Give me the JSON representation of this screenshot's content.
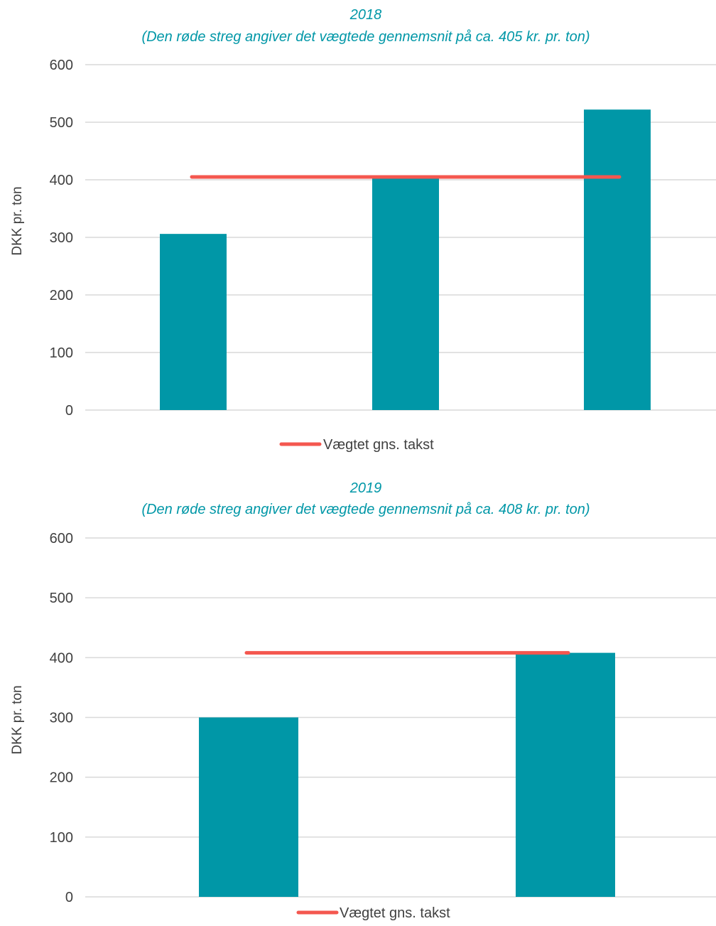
{
  "colors": {
    "bar": "#0097A7",
    "average_line": "#F4574F",
    "title": "#0097A7",
    "grid": "#D9D9D9",
    "text": "#404040"
  },
  "chart_data": [
    {
      "type": "bar",
      "title": "2018",
      "subtitle": "(Den røde streg angiver det vægtede gennemsnit på ca. 405 kr. pr. ton)",
      "xlabel": "",
      "ylabel": "DKK pr. ton",
      "ylim": [
        0,
        600
      ],
      "yticks": [
        0,
        100,
        200,
        300,
        400,
        500,
        600
      ],
      "grid": true,
      "categories": [
        "",
        "",
        ""
      ],
      "values": [
        306,
        405,
        522
      ],
      "reference_line": {
        "name": "Vægtet gns. takst",
        "value": 405
      },
      "legend": {
        "position": "bottom",
        "entries": [
          "Vægtet gns. takst"
        ]
      }
    },
    {
      "type": "bar",
      "title": "2019",
      "subtitle": "(Den røde streg angiver det vægtede gennemsnit på ca. 408 kr. pr. ton)",
      "xlabel": "",
      "ylabel": "DKK pr. ton",
      "ylim": [
        0,
        600
      ],
      "yticks": [
        0,
        100,
        200,
        300,
        400,
        500,
        600
      ],
      "grid": true,
      "categories": [
        "",
        ""
      ],
      "values": [
        300,
        408
      ],
      "reference_line": {
        "name": "Vægtet gns. takst",
        "value": 408
      },
      "legend": {
        "position": "bottom",
        "entries": [
          "Vægtet gns. takst"
        ]
      }
    }
  ]
}
